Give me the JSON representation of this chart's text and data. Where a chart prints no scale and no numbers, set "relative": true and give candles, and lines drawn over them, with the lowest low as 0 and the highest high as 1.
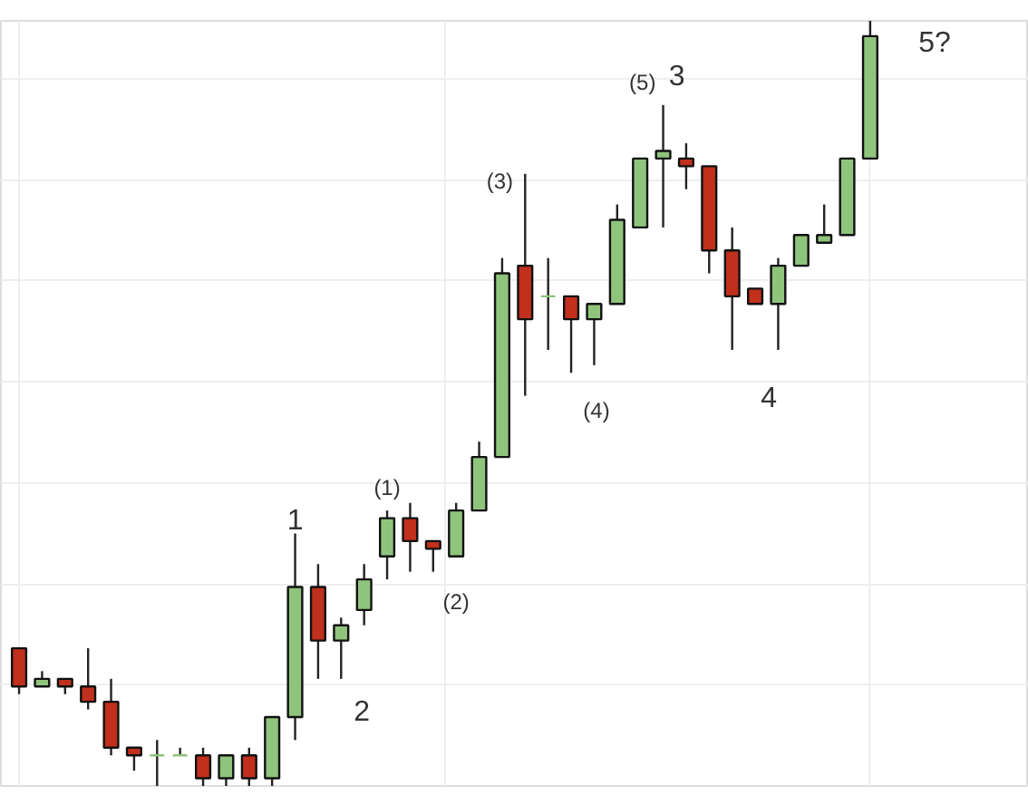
{
  "chart_data": {
    "type": "candlestick",
    "relative": true,
    "grid": true,
    "categories": [
      null,
      null,
      null,
      null,
      null,
      null,
      null,
      null,
      null,
      null,
      null,
      null,
      null,
      null,
      null,
      null,
      null,
      null,
      null,
      null,
      null,
      null,
      null,
      null,
      null,
      null,
      null,
      null,
      null,
      null,
      null,
      null,
      null,
      null,
      null,
      null,
      null,
      null
    ],
    "ohlc": [
      [
        0.18,
        0.18,
        0.12,
        0.13
      ],
      [
        0.13,
        0.15,
        0.13,
        0.14
      ],
      [
        0.14,
        0.14,
        0.12,
        0.13
      ],
      [
        0.13,
        0.18,
        0.1,
        0.11
      ],
      [
        0.11,
        0.14,
        0.04,
        0.05
      ],
      [
        0.05,
        0.05,
        0.02,
        0.04
      ],
      [
        0.04,
        0.06,
        0.0,
        0.04
      ],
      [
        0.04,
        0.05,
        0.04,
        0.04
      ],
      [
        0.04,
        0.05,
        0.0,
        0.01
      ],
      [
        0.01,
        0.04,
        0.0,
        0.04
      ],
      [
        0.04,
        0.05,
        0.0,
        0.01
      ],
      [
        0.01,
        0.09,
        0.0,
        0.09
      ],
      [
        0.09,
        0.33,
        0.06,
        0.26
      ],
      [
        0.26,
        0.29,
        0.14,
        0.19
      ],
      [
        0.19,
        0.22,
        0.14,
        0.21
      ],
      [
        0.23,
        0.29,
        0.21,
        0.27
      ],
      [
        0.3,
        0.36,
        0.27,
        0.35
      ],
      [
        0.35,
        0.37,
        0.28,
        0.32
      ],
      [
        0.32,
        0.32,
        0.28,
        0.31
      ],
      [
        0.3,
        0.37,
        0.3,
        0.36
      ],
      [
        0.36,
        0.45,
        0.36,
        0.43
      ],
      [
        0.43,
        0.69,
        0.43,
        0.67
      ],
      [
        0.68,
        0.8,
        0.51,
        0.61
      ],
      [
        0.64,
        0.69,
        0.57,
        0.64
      ],
      [
        0.64,
        0.64,
        0.54,
        0.61
      ],
      [
        0.61,
        0.63,
        0.55,
        0.63
      ],
      [
        0.63,
        0.76,
        0.63,
        0.74
      ],
      [
        0.73,
        0.82,
        0.73,
        0.82
      ],
      [
        0.82,
        0.89,
        0.73,
        0.83
      ],
      [
        0.82,
        0.84,
        0.78,
        0.81
      ],
      [
        0.81,
        0.81,
        0.67,
        0.7
      ],
      [
        0.7,
        0.73,
        0.57,
        0.64
      ],
      [
        0.65,
        0.65,
        0.63,
        0.63
      ],
      [
        0.63,
        0.69,
        0.57,
        0.68
      ],
      [
        0.68,
        0.72,
        0.68,
        0.72
      ],
      [
        0.71,
        0.76,
        0.71,
        0.72
      ],
      [
        0.72,
        0.82,
        0.72,
        0.82
      ],
      [
        0.82,
        1.0,
        0.82,
        0.98
      ]
    ],
    "colors": [
      "#c0301c",
      "#8fc47c",
      "#c0301c",
      "#c0301c",
      "#c0301c",
      "#c0301c",
      "#8fc47c",
      "#8fc47c",
      "#c0301c",
      "#8fc47c",
      "#c0301c",
      "#8fc47c",
      "#8fc47c",
      "#c0301c",
      "#8fc47c",
      "#8fc47c",
      "#8fc47c",
      "#c0301c",
      "#c0301c",
      "#8fc47c",
      "#8fc47c",
      "#8fc47c",
      "#c0301c",
      "#8fc47c",
      "#c0301c",
      "#8fc47c",
      "#8fc47c",
      "#8fc47c",
      "#8fc47c",
      "#c0301c",
      "#c0301c",
      "#c0301c",
      "#c0301c",
      "#8fc47c",
      "#8fc47c",
      "#8fc47c",
      "#8fc47c",
      "#8fc47c"
    ],
    "annotations": [
      "1",
      "2",
      "(1)",
      "(2)",
      "(3)",
      "(4)",
      "(5)",
      "3",
      "4",
      "5?"
    ]
  }
}
